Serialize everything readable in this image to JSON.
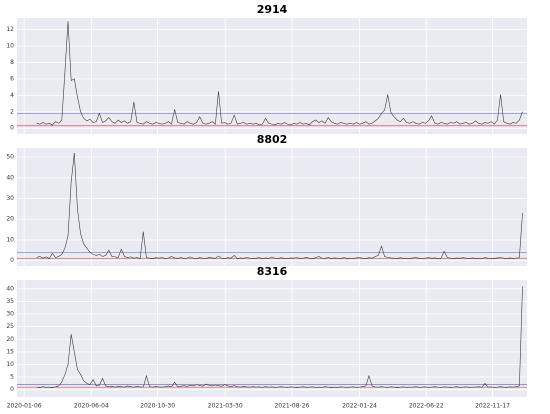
{
  "chart_data": {
    "type": "line",
    "layout": "stacked",
    "grid": true,
    "line_color": "#3a3a3a",
    "xlim": [
      "2019-12-21",
      "2023-02-02"
    ],
    "xticks": [
      "2020-01-06",
      "2020-06-04",
      "2020-10-30",
      "2021-03-30",
      "2021-08-26",
      "2022-01-24",
      "2022-06-22",
      "2022-11-17"
    ],
    "x": [
      "2020-02-03",
      "2020-02-10",
      "2020-02-17",
      "2020-02-24",
      "2020-03-02",
      "2020-03-09",
      "2020-03-16",
      "2020-03-23",
      "2020-03-30",
      "2020-04-06",
      "2020-04-13",
      "2020-04-20",
      "2020-04-27",
      "2020-05-04",
      "2020-05-11",
      "2020-05-18",
      "2020-05-25",
      "2020-06-01",
      "2020-06-08",
      "2020-06-15",
      "2020-06-22",
      "2020-06-29",
      "2020-07-06",
      "2020-07-13",
      "2020-07-20",
      "2020-07-27",
      "2020-08-03",
      "2020-08-10",
      "2020-08-17",
      "2020-08-24",
      "2020-08-31",
      "2020-09-07",
      "2020-09-14",
      "2020-09-21",
      "2020-09-28",
      "2020-10-05",
      "2020-10-12",
      "2020-10-19",
      "2020-10-26",
      "2020-11-02",
      "2020-11-09",
      "2020-11-16",
      "2020-11-23",
      "2020-11-30",
      "2020-12-07",
      "2020-12-14",
      "2020-12-21",
      "2020-12-28",
      "2021-01-04",
      "2021-01-11",
      "2021-01-18",
      "2021-01-25",
      "2021-02-01",
      "2021-02-08",
      "2021-02-15",
      "2021-02-22",
      "2021-03-01",
      "2021-03-08",
      "2021-03-15",
      "2021-03-22",
      "2021-03-29",
      "2021-04-05",
      "2021-04-12",
      "2021-04-19",
      "2021-04-26",
      "2021-05-03",
      "2021-05-10",
      "2021-05-17",
      "2021-05-24",
      "2021-05-31",
      "2021-06-07",
      "2021-06-14",
      "2021-06-21",
      "2021-06-28",
      "2021-07-05",
      "2021-07-12",
      "2021-07-19",
      "2021-07-26",
      "2021-08-02",
      "2021-08-09",
      "2021-08-16",
      "2021-08-23",
      "2021-08-30",
      "2021-09-06",
      "2021-09-13",
      "2021-09-20",
      "2021-09-27",
      "2021-10-04",
      "2021-10-11",
      "2021-10-18",
      "2021-10-25",
      "2021-11-01",
      "2021-11-08",
      "2021-11-15",
      "2021-11-22",
      "2021-11-29",
      "2021-12-06",
      "2021-12-13",
      "2021-12-20",
      "2021-12-27",
      "2022-01-03",
      "2022-01-10",
      "2022-01-17",
      "2022-01-24",
      "2022-01-31",
      "2022-02-07",
      "2022-02-14",
      "2022-02-21",
      "2022-02-28",
      "2022-03-07",
      "2022-03-14",
      "2022-03-21",
      "2022-03-28",
      "2022-04-04",
      "2022-04-11",
      "2022-04-18",
      "2022-04-25",
      "2022-05-02",
      "2022-05-09",
      "2022-05-16",
      "2022-05-23",
      "2022-05-30",
      "2022-06-06",
      "2022-06-13",
      "2022-06-20",
      "2022-06-27",
      "2022-07-04",
      "2022-07-11",
      "2022-07-18",
      "2022-07-25",
      "2022-08-01",
      "2022-08-08",
      "2022-08-15",
      "2022-08-22",
      "2022-08-29",
      "2022-09-05",
      "2022-09-12",
      "2022-09-19",
      "2022-09-26",
      "2022-10-03",
      "2022-10-10",
      "2022-10-17",
      "2022-10-24",
      "2022-10-31",
      "2022-11-07",
      "2022-11-14",
      "2022-11-21",
      "2022-11-28",
      "2022-12-05",
      "2022-12-12",
      "2022-12-19",
      "2022-12-26",
      "2023-01-02",
      "2023-01-09",
      "2023-01-16",
      "2023-01-23"
    ],
    "series": [
      {
        "name": "2914",
        "ylim": [
          -0.7,
          13.4
        ],
        "yticks": [
          0,
          2,
          4,
          6,
          8,
          10,
          12
        ],
        "hlines": [
          {
            "value": 1.8,
            "color": "#6f7cc9"
          },
          {
            "value": 0.3,
            "color": "#d9534f"
          }
        ],
        "values": [
          0.6,
          0.5,
          0.7,
          0.5,
          0.6,
          0.4,
          0.8,
          0.6,
          1.0,
          6.8,
          13.0,
          5.8,
          6.0,
          3.8,
          2.0,
          1.2,
          0.9,
          1.1,
          0.7,
          0.8,
          1.8,
          0.7,
          0.9,
          1.3,
          0.8,
          0.6,
          1.0,
          0.7,
          0.9,
          0.6,
          0.8,
          3.2,
          0.7,
          0.6,
          0.5,
          0.8,
          0.6,
          0.5,
          0.7,
          0.6,
          0.5,
          0.6,
          0.8,
          0.5,
          2.3,
          0.7,
          0.6,
          0.5,
          0.8,
          0.6,
          0.5,
          0.7,
          1.4,
          0.6,
          0.5,
          0.6,
          0.8,
          0.5,
          4.5,
          0.6,
          0.7,
          0.5,
          0.6,
          1.6,
          0.5,
          0.6,
          0.7,
          0.5,
          0.6,
          0.5,
          0.6,
          0.4,
          0.5,
          1.2,
          0.6,
          0.5,
          0.4,
          0.6,
          0.5,
          0.7,
          0.5,
          0.4,
          0.6,
          0.5,
          0.7,
          0.5,
          0.6,
          0.4,
          0.8,
          1.0,
          0.7,
          0.9,
          0.6,
          1.3,
          0.8,
          0.6,
          0.5,
          0.7,
          0.6,
          0.5,
          0.6,
          0.5,
          0.7,
          0.5,
          0.6,
          0.8,
          0.5,
          0.6,
          0.9,
          1.2,
          1.8,
          2.2,
          4.1,
          1.9,
          1.4,
          1.0,
          0.8,
          1.2,
          0.7,
          0.6,
          0.8,
          0.6,
          0.5,
          0.7,
          0.6,
          0.9,
          1.5,
          0.6,
          0.5,
          0.7,
          0.6,
          0.5,
          0.7,
          0.6,
          0.8,
          0.5,
          0.6,
          0.7,
          0.5,
          0.6,
          0.9,
          0.6,
          0.5,
          0.7,
          0.6,
          0.8,
          0.5,
          1.0,
          4.1,
          0.8,
          0.6,
          0.5,
          0.7,
          0.6,
          1.0,
          2.0
        ]
      },
      {
        "name": "8802",
        "ylim": [
          -2.6,
          54.4
        ],
        "yticks": [
          0,
          10,
          20,
          30,
          40,
          50
        ],
        "hlines": [
          {
            "value": 4.0,
            "color": "#6f7cc9"
          },
          {
            "value": 1.0,
            "color": "#d9534f"
          }
        ],
        "values": [
          1.5,
          2.0,
          1.2,
          1.8,
          1.0,
          3.5,
          1.5,
          2.0,
          3.0,
          6.0,
          12,
          38,
          52,
          25,
          13,
          8,
          6,
          4,
          3,
          2.5,
          3.0,
          2.0,
          2.5,
          5.0,
          2.0,
          1.8,
          1.5,
          5.5,
          2.0,
          1.5,
          1.8,
          1.2,
          1.5,
          1.0,
          14,
          1.5,
          1.2,
          1.0,
          1.4,
          1.2,
          1.5,
          1.0,
          1.2,
          2.0,
          1.3,
          1.1,
          1.5,
          1.0,
          1.2,
          1.8,
          1.2,
          1.0,
          1.4,
          1.2,
          1.0,
          1.6,
          1.3,
          1.1,
          2.2,
          1.2,
          1.0,
          1.4,
          1.2,
          2.5,
          1.0,
          1.3,
          1.1,
          1.5,
          1.2,
          1.0,
          1.2,
          1.4,
          1.0,
          1.3,
          1.1,
          1.8,
          1.2,
          1.0,
          1.4,
          1.1,
          1.0,
          1.3,
          1.2,
          1.5,
          1.0,
          1.2,
          1.6,
          1.1,
          1.0,
          1.4,
          2.0,
          1.2,
          1.1,
          1.5,
          1.0,
          1.3,
          1.2,
          1.0,
          1.4,
          1.1,
          1.2,
          1.0,
          1.3,
          1.5,
          1.1,
          1.0,
          1.4,
          1.2,
          2.0,
          2.5,
          7.0,
          2.0,
          1.5,
          1.3,
          1.2,
          1.0,
          1.4,
          1.1,
          1.2,
          1.0,
          1.3,
          1.5,
          1.1,
          1.0,
          1.2,
          1.4,
          1.1,
          1.3,
          1.0,
          1.2,
          4.5,
          1.5,
          1.2,
          1.0,
          1.3,
          1.1,
          1.4,
          1.2,
          1.0,
          1.3,
          1.1,
          1.2,
          1.0,
          1.4,
          1.2,
          1.1,
          1.0,
          1.3,
          1.5,
          1.2,
          1.0,
          1.3,
          1.1,
          1.2,
          1.5,
          23
        ]
      },
      {
        "name": "8316",
        "ylim": [
          -2.9,
          43.5
        ],
        "yticks": [
          0,
          5,
          10,
          15,
          20,
          25,
          30,
          35,
          40
        ],
        "hlines": [
          {
            "value": 2.0,
            "color": "#6f7cc9"
          },
          {
            "value": 1.0,
            "color": "#d9534f"
          }
        ],
        "values": [
          1.0,
          0.8,
          1.2,
          0.9,
          1.0,
          0.8,
          1.1,
          1.5,
          3.0,
          6.0,
          10,
          22,
          15,
          8,
          6,
          3.5,
          2.5,
          2.0,
          4.0,
          1.5,
          1.8,
          4.5,
          1.5,
          1.2,
          1.4,
          1.0,
          1.3,
          1.2,
          1.0,
          1.5,
          1.2,
          1.0,
          1.3,
          1.1,
          1.0,
          5.5,
          1.2,
          1.0,
          1.3,
          1.1,
          1.0,
          1.2,
          1.5,
          1.1,
          3.0,
          1.2,
          1.4,
          1.6,
          1.3,
          1.8,
          1.5,
          2.0,
          1.7,
          1.4,
          2.2,
          1.8,
          1.5,
          1.9,
          1.6,
          1.4,
          2.0,
          1.5,
          1.3,
          1.6,
          1.2,
          1.0,
          1.3,
          1.1,
          1.0,
          1.2,
          1.0,
          1.1,
          0.9,
          1.2,
          1.0,
          1.1,
          0.9,
          1.0,
          1.2,
          1.0,
          0.9,
          1.1,
          1.0,
          0.8,
          1.0,
          1.2,
          0.9,
          1.0,
          1.1,
          0.9,
          1.0,
          0.9,
          1.2,
          1.0,
          0.8,
          1.0,
          0.9,
          1.1,
          1.0,
          0.9,
          1.0,
          1.1,
          0.9,
          1.0,
          1.2,
          1.5,
          5.5,
          1.5,
          1.1,
          1.0,
          1.2,
          1.0,
          0.9,
          1.1,
          1.0,
          0.8,
          1.0,
          1.1,
          0.9,
          1.0,
          1.0,
          1.2,
          0.9,
          1.0,
          1.1,
          0.9,
          1.0,
          1.2,
          1.0,
          0.9,
          1.1,
          1.0,
          0.9,
          1.0,
          1.2,
          0.9,
          1.0,
          1.1,
          0.9,
          1.0,
          1.0,
          1.2,
          0.9,
          2.5,
          1.0,
          1.1,
          0.9,
          1.0,
          1.2,
          1.0,
          0.9,
          1.1,
          1.0,
          1.2,
          1.5,
          41
        ]
      }
    ]
  }
}
